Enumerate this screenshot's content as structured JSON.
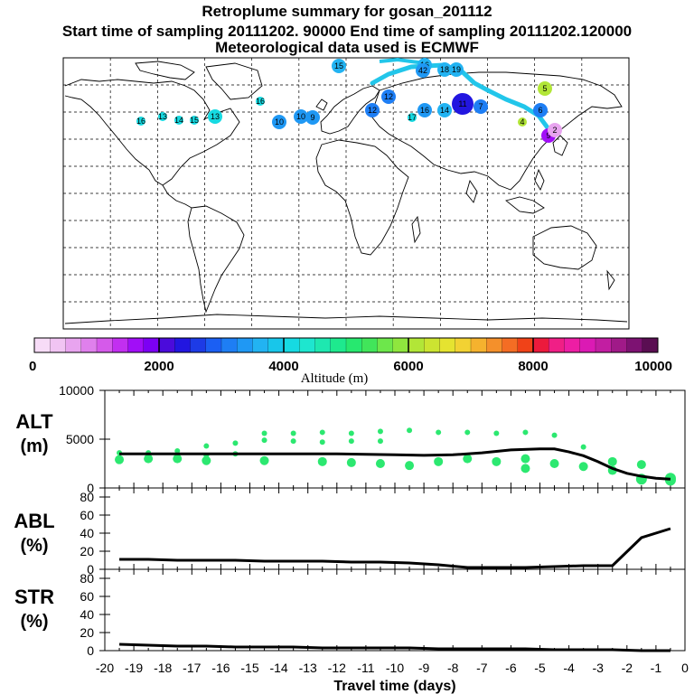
{
  "header": {
    "title": "Retroplume summary for gosan_201112",
    "sampling": "Start time of sampling 20111202. 90000     End time of sampling 20111202.120000",
    "met": "Meteorological data used is ECMWF"
  },
  "colorbar": {
    "label": "Altitude (m)",
    "ticks": [
      "0",
      "2000",
      "4000",
      "6000",
      "8000",
      "10000"
    ],
    "colors": [
      "#f7dcf7",
      "#f1c4f3",
      "#e8a4ef",
      "#df80ec",
      "#d55aea",
      "#c22ff0",
      "#a10ef7",
      "#7c00f4",
      "#4b0bdb",
      "#2216e0",
      "#1d3be6",
      "#1b5ff3",
      "#1e7ef4",
      "#1f98f4",
      "#22b3f2",
      "#18c6ea",
      "#16dae2",
      "#1ee6cf",
      "#1ee8b0",
      "#1ee98e",
      "#27e86f",
      "#41e55a",
      "#6de74b",
      "#8fe63e",
      "#b2e637",
      "#cce431",
      "#e5e330",
      "#f2d233",
      "#f5b22e",
      "#f4902b",
      "#f46d24",
      "#f04218",
      "#ec1a3c",
      "#f01f86",
      "#ed1ea4",
      "#db1ab4",
      "#c21ea2",
      "#a01a88",
      "#7d1272",
      "#5a0e52"
    ]
  },
  "map_points": [
    {
      "label": "15",
      "color": "#22b3f2",
      "size": "m"
    },
    {
      "label": "16",
      "color": "#22b3f2",
      "size": "m"
    },
    {
      "label": "42",
      "color": "#1f98f4",
      "size": "m"
    },
    {
      "label": "18",
      "color": "#22b3f2",
      "size": "m"
    },
    {
      "label": "19",
      "color": "#22b3f2",
      "size": "m"
    },
    {
      "label": "12",
      "color": "#1e7ef4",
      "size": "m"
    },
    {
      "label": "11",
      "color": "#2216e0",
      "size": "l"
    },
    {
      "label": "16",
      "color": "#1f98f4",
      "size": "m"
    },
    {
      "label": "14",
      "color": "#22b3f2",
      "size": "m"
    },
    {
      "label": "7",
      "color": "#1e7ef4",
      "size": "m"
    },
    {
      "label": "6",
      "color": "#1e7ef4",
      "size": "m"
    },
    {
      "label": "9",
      "color": "#a10ef7",
      "size": "m"
    },
    {
      "label": "5",
      "color": "#b2e637",
      "size": "m"
    },
    {
      "label": "4",
      "color": "#b2e637",
      "size": "s"
    },
    {
      "label": "2",
      "color": "#e8a4ef",
      "size": "m"
    },
    {
      "label": "10",
      "color": "#1f98f4",
      "size": "m"
    },
    {
      "label": "13",
      "color": "#16dae2",
      "size": "s"
    },
    {
      "label": "14",
      "color": "#16dae2",
      "size": "s"
    },
    {
      "label": "15",
      "color": "#16dae2",
      "size": "s"
    },
    {
      "label": "16",
      "color": "#16dae2",
      "size": "s"
    },
    {
      "label": "13",
      "color": "#16dae2",
      "size": "m"
    },
    {
      "label": "16",
      "color": "#16dae2",
      "size": "s"
    },
    {
      "label": "10",
      "color": "#1f98f4",
      "size": "m"
    },
    {
      "label": "9",
      "color": "#1f98f4",
      "size": "m"
    },
    {
      "label": "17",
      "color": "#16dae2",
      "size": "s"
    },
    {
      "label": "12",
      "color": "#1e7ef4",
      "size": "m"
    }
  ],
  "panels": {
    "alt": {
      "label": "ALT",
      "unit": "(m)"
    },
    "abl": {
      "label": "ABL",
      "unit": "(%)"
    },
    "str": {
      "label": "STR",
      "unit": "(%)"
    },
    "xlabel": "Travel time (days)"
  },
  "chart_data": [
    {
      "type": "scatter",
      "name": "altitude",
      "ylabel": "ALT (m)",
      "xlabel": "Travel time (days)",
      "xlim": [
        -20,
        0
      ],
      "ylim": [
        0,
        10000
      ],
      "yticks": [
        "0",
        "5000",
        "10000"
      ],
      "line_x": [
        -19.5,
        -19,
        -18,
        -17,
        -16,
        -15,
        -14,
        -13,
        -12,
        -11,
        -10,
        -9,
        -8,
        -7,
        -6,
        -5,
        -4.5,
        -4,
        -3.5,
        -3,
        -2.5,
        -2,
        -1.5,
        -1,
        -0.5
      ],
      "line_y": [
        3500,
        3500,
        3500,
        3500,
        3500,
        3500,
        3500,
        3500,
        3500,
        3450,
        3400,
        3350,
        3400,
        3600,
        3900,
        4000,
        4000,
        3700,
        3300,
        2700,
        2000,
        1500,
        1200,
        1000,
        900
      ],
      "scatter_x": [
        -19.5,
        -19.5,
        -18.5,
        -18.5,
        -17.5,
        -17.5,
        -16.5,
        -16.5,
        -16.5,
        -15.5,
        -15.5,
        -14.5,
        -14.5,
        -14.5,
        -13.5,
        -13.5,
        -12.5,
        -12.5,
        -12.5,
        -11.5,
        -11.5,
        -11.5,
        -10.5,
        -10.5,
        -10.5,
        -9.5,
        -9.5,
        -8.5,
        -8.5,
        -7.5,
        -7.5,
        -6.5,
        -6.5,
        -5.5,
        -5.5,
        -5.5,
        -4.5,
        -4.5,
        -3.5,
        -3.5,
        -2.5,
        -2.5,
        -1.5,
        -1.5,
        -0.5,
        -0.5
      ],
      "scatter_y": [
        3600,
        2900,
        3600,
        3000,
        3800,
        3000,
        4300,
        3300,
        2800,
        4600,
        3500,
        5600,
        4900,
        2800,
        5600,
        4800,
        5700,
        4700,
        2700,
        5600,
        4800,
        2600,
        5800,
        4800,
        2500,
        5900,
        2300,
        5700,
        2700,
        5700,
        3000,
        5600,
        2700,
        5700,
        3000,
        2000,
        5400,
        2500,
        4200,
        2200,
        2700,
        1800,
        2400,
        900,
        1000,
        800
      ],
      "point_color": "#2ce870"
    },
    {
      "type": "line",
      "name": "abl",
      "ylabel": "ABL (%)",
      "xlim": [
        -20,
        0
      ],
      "ylim": [
        0,
        90
      ],
      "yticks": [
        "0",
        "20",
        "40",
        "60",
        "80"
      ],
      "x": [
        -19.5,
        -18.5,
        -17.5,
        -16.5,
        -15.5,
        -14.5,
        -13.5,
        -12.5,
        -11.5,
        -10.5,
        -9.5,
        -8.5,
        -7.5,
        -6.5,
        -5.5,
        -4.5,
        -3.5,
        -2.5,
        -1.5,
        -0.5
      ],
      "y": [
        11,
        11,
        10,
        10,
        10,
        9,
        9,
        9,
        8,
        8,
        7,
        5,
        2,
        2,
        2,
        3,
        4,
        4,
        35,
        45
      ]
    },
    {
      "type": "line",
      "name": "str",
      "ylabel": "STR (%)",
      "xlim": [
        -20,
        0
      ],
      "ylim": [
        0,
        90
      ],
      "yticks": [
        "0",
        "20",
        "40",
        "60",
        "80"
      ],
      "xticks": [
        "-20",
        "-19",
        "-18",
        "-17",
        "-16",
        "-15",
        "-14",
        "-13",
        "-12",
        "-11",
        "-10",
        "-9",
        "-8",
        "-7",
        "-6",
        "-5",
        "-4",
        "-3",
        "-2",
        "-1",
        "0"
      ],
      "x": [
        -19.5,
        -18.5,
        -17.5,
        -16.5,
        -15.5,
        -14.5,
        -13.5,
        -12.5,
        -11.5,
        -10.5,
        -9.5,
        -8.5,
        -7.5,
        -6.5,
        -5.5,
        -4.5,
        -3.5,
        -2.5,
        -1.5,
        -0.5
      ],
      "y": [
        7,
        6,
        5,
        5,
        4,
        4,
        4,
        3,
        3,
        3,
        3,
        2,
        2,
        2,
        2,
        1,
        1,
        1,
        0,
        0
      ]
    }
  ]
}
